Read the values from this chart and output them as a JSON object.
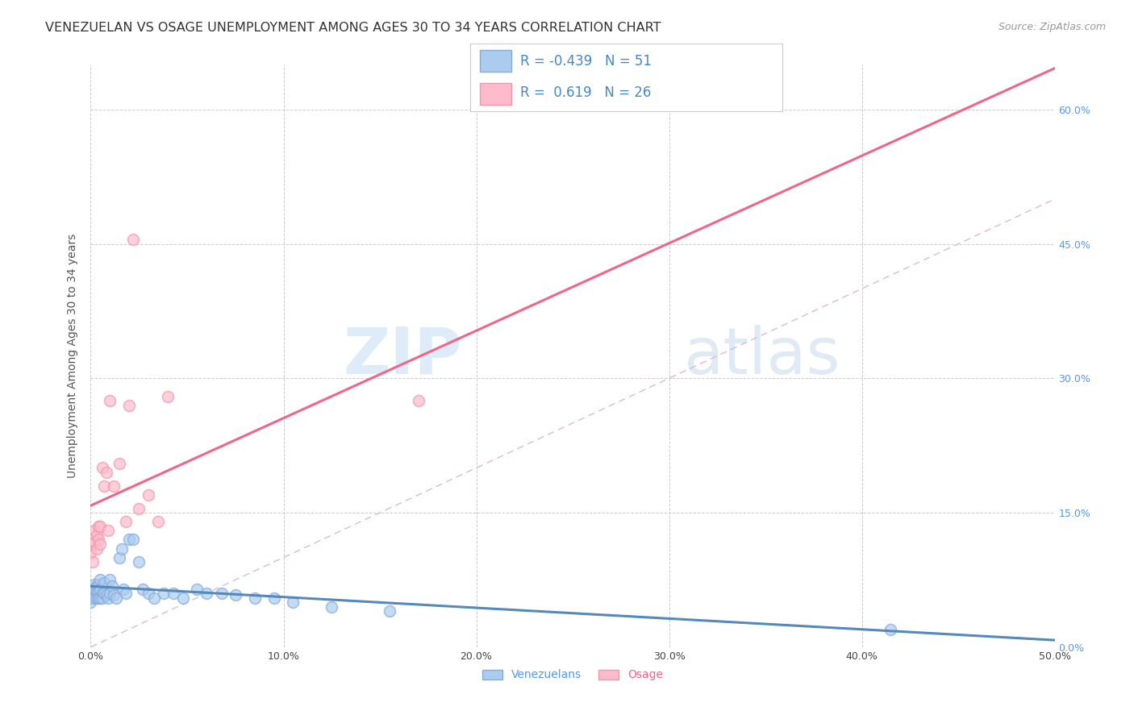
{
  "title": "VENEZUELAN VS OSAGE UNEMPLOYMENT AMONG AGES 30 TO 34 YEARS CORRELATION CHART",
  "source": "Source: ZipAtlas.com",
  "ylabel": "Unemployment Among Ages 30 to 34 years",
  "xlim": [
    0,
    0.5
  ],
  "ylim": [
    0,
    0.65
  ],
  "xticks": [
    0.0,
    0.1,
    0.2,
    0.3,
    0.4,
    0.5
  ],
  "xtick_labels": [
    "0.0%",
    "10.0%",
    "20.0%",
    "30.0%",
    "40.0%",
    "50.0%"
  ],
  "yticks": [
    0.0,
    0.15,
    0.3,
    0.45,
    0.6
  ],
  "ytick_labels_right": [
    "0.0%",
    "15.0%",
    "30.0%",
    "45.0%",
    "60.0%"
  ],
  "grid_color": "#cccccc",
  "background_color": "#ffffff",
  "watermark_zip": "ZIP",
  "watermark_atlas": "atlas",
  "venezuelan_color": "#aaccee",
  "venezuelan_edge": "#88aadd",
  "osage_color": "#ffbbcc",
  "osage_edge": "#ee99aa",
  "venezuelan_line_color": "#5588bb",
  "osage_line_color": "#ee6688",
  "diag_line_color": "#ddbbcc",
  "venezuelan_R": -0.439,
  "venezuelan_N": 51,
  "osage_R": 0.619,
  "osage_N": 26,
  "legend_label_venezuelan": "Venezuelans",
  "legend_label_osage": "Osage",
  "venezuelan_x": [
    0.0,
    0.0,
    0.0,
    0.001,
    0.001,
    0.002,
    0.002,
    0.002,
    0.003,
    0.003,
    0.003,
    0.004,
    0.004,
    0.004,
    0.005,
    0.005,
    0.005,
    0.006,
    0.006,
    0.007,
    0.007,
    0.008,
    0.009,
    0.01,
    0.01,
    0.011,
    0.012,
    0.013,
    0.015,
    0.016,
    0.017,
    0.018,
    0.02,
    0.022,
    0.025,
    0.027,
    0.03,
    0.033,
    0.038,
    0.043,
    0.048,
    0.055,
    0.06,
    0.068,
    0.075,
    0.085,
    0.095,
    0.105,
    0.125,
    0.155,
    0.415
  ],
  "venezuelan_y": [
    0.06,
    0.055,
    0.05,
    0.065,
    0.06,
    0.07,
    0.065,
    0.055,
    0.068,
    0.062,
    0.055,
    0.07,
    0.062,
    0.055,
    0.075,
    0.065,
    0.055,
    0.06,
    0.055,
    0.072,
    0.06,
    0.058,
    0.055,
    0.075,
    0.06,
    0.068,
    0.058,
    0.055,
    0.1,
    0.11,
    0.065,
    0.06,
    0.12,
    0.12,
    0.095,
    0.065,
    0.06,
    0.055,
    0.06,
    0.06,
    0.055,
    0.065,
    0.06,
    0.06,
    0.058,
    0.055,
    0.055,
    0.05,
    0.045,
    0.04,
    0.02
  ],
  "osage_x": [
    0.0,
    0.001,
    0.001,
    0.002,
    0.002,
    0.003,
    0.003,
    0.004,
    0.004,
    0.005,
    0.005,
    0.006,
    0.007,
    0.008,
    0.009,
    0.01,
    0.012,
    0.015,
    0.018,
    0.02,
    0.022,
    0.025,
    0.03,
    0.035,
    0.04,
    0.17
  ],
  "osage_y": [
    0.105,
    0.115,
    0.095,
    0.13,
    0.118,
    0.125,
    0.11,
    0.135,
    0.12,
    0.135,
    0.115,
    0.2,
    0.18,
    0.195,
    0.13,
    0.275,
    0.18,
    0.205,
    0.14,
    0.27,
    0.455,
    0.155,
    0.17,
    0.14,
    0.28,
    0.275
  ],
  "title_fontsize": 11.5,
  "source_fontsize": 9,
  "axis_label_fontsize": 10,
  "tick_fontsize": 9,
  "marker_size": 100,
  "marker_lw": 1.2,
  "line_width": 2.2,
  "legend_fontsize": 12
}
